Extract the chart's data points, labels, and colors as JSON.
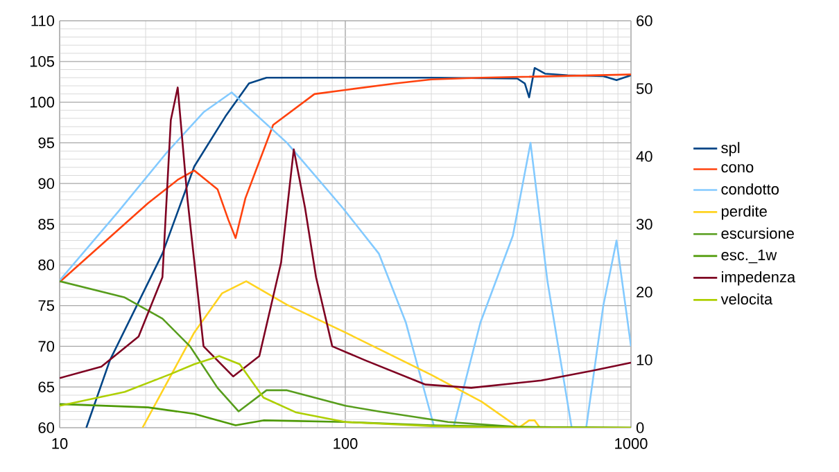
{
  "chart_data": {
    "type": "line",
    "log": "x",
    "grid": true,
    "legend": "right",
    "xlim": [
      10,
      1000
    ],
    "xticks": [
      10,
      100,
      1000
    ],
    "ylim": [
      60,
      110
    ],
    "yticks": [
      60,
      65,
      70,
      75,
      80,
      85,
      90,
      95,
      100,
      105,
      110
    ],
    "y2lim": [
      0,
      60
    ],
    "y2ticks": [
      0,
      10,
      20,
      30,
      40,
      50,
      60
    ],
    "series": [
      {
        "name": "spl",
        "color": "#004586",
        "x": [
          12.4,
          15,
          22.9,
          29.6,
          38.3,
          46,
          53,
          100,
          200,
          400,
          425,
          440,
          460,
          500,
          600,
          800,
          890,
          1000
        ],
        "values": [
          60,
          68.3,
          81.4,
          92.1,
          98.4,
          102.3,
          103,
          103,
          103,
          102.9,
          102.3,
          100.6,
          104.2,
          103.5,
          103.3,
          103.2,
          102.7,
          103.3
        ]
      },
      {
        "name": "cono",
        "color": "#ff420e",
        "x": [
          10,
          20.4,
          26,
          29.6,
          35.7,
          39,
          41.3,
          44.7,
          55.9,
          78,
          100,
          150,
          200,
          300,
          1000
        ],
        "values": [
          77.9,
          87.6,
          90.5,
          91.6,
          89.3,
          85.5,
          83.3,
          88.2,
          97.2,
          101,
          101.5,
          102.3,
          102.8,
          103,
          103.4
        ]
      },
      {
        "name": "condotto",
        "color": "#83caff",
        "x": [
          10,
          16,
          23.7,
          32,
          40,
          62.5,
          98,
          131,
          163,
          205,
          220,
          239,
          297,
          386,
          445,
          510,
          620,
          660,
          697,
          800,
          890,
          1000
        ],
        "values": [
          78.1,
          86.5,
          93.8,
          98.8,
          101.2,
          95,
          87,
          81.4,
          72.9,
          60,
          null,
          60,
          72.9,
          83.6,
          95,
          78,
          60,
          null,
          60,
          75,
          83,
          70
        ]
      },
      {
        "name": "perdite",
        "color": "#ffd320",
        "x": [
          19.5,
          29.6,
          37,
          45,
          62.5,
          100,
          200,
          300,
          405,
          440,
          460,
          480
        ],
        "values": [
          60,
          71.7,
          76.5,
          78,
          75.1,
          71.7,
          66.5,
          63.2,
          60,
          60.9,
          60.9,
          60
        ]
      },
      {
        "name": "escursione",
        "color": "#579d1c",
        "x": [
          10,
          16.9,
          22.9,
          28.6,
          35.7,
          42.3,
          53,
          62.5,
          100,
          131,
          229,
          400,
          1000
        ],
        "values": [
          78,
          76,
          73.4,
          70,
          64.9,
          62,
          64.6,
          64.6,
          62.7,
          62,
          60.7,
          60.1,
          60
        ]
      },
      {
        "name": "esc._1w",
        "color": "#4e9a06",
        "x": [
          10,
          20.4,
          29.6,
          41.3,
          51.7,
          100,
          200,
          400,
          1000
        ],
        "values": [
          62.9,
          62.5,
          61.7,
          60.3,
          60.9,
          60.7,
          60.3,
          60.1,
          60
        ]
      },
      {
        "name": "impedenza",
        "color": "#7e0021",
        "x": [
          10,
          14,
          18.9,
          22.9,
          24.5,
          25.9,
          28,
          31.9,
          40.5,
          50,
          59.6,
          66,
          72.3,
          79,
          90,
          117,
          191,
          276,
          485,
          730,
          1000
        ],
        "values": [
          66.1,
          67.5,
          71.2,
          78.5,
          97.8,
          101.8,
          88.2,
          70,
          66.3,
          68.8,
          80.3,
          94.2,
          87,
          78.5,
          70,
          68.3,
          65.3,
          64.9,
          65.8,
          67,
          68
        ]
      },
      {
        "name": "velocita",
        "color": "#aecf00",
        "x": [
          10,
          16.9,
          24.5,
          29.6,
          36.2,
          42.7,
          51.7,
          67,
          100,
          200,
          400,
          1000
        ],
        "values": [
          62.7,
          64.4,
          66.6,
          67.8,
          68.8,
          67.8,
          63.7,
          61.9,
          60.7,
          60.2,
          60,
          60
        ]
      }
    ]
  }
}
